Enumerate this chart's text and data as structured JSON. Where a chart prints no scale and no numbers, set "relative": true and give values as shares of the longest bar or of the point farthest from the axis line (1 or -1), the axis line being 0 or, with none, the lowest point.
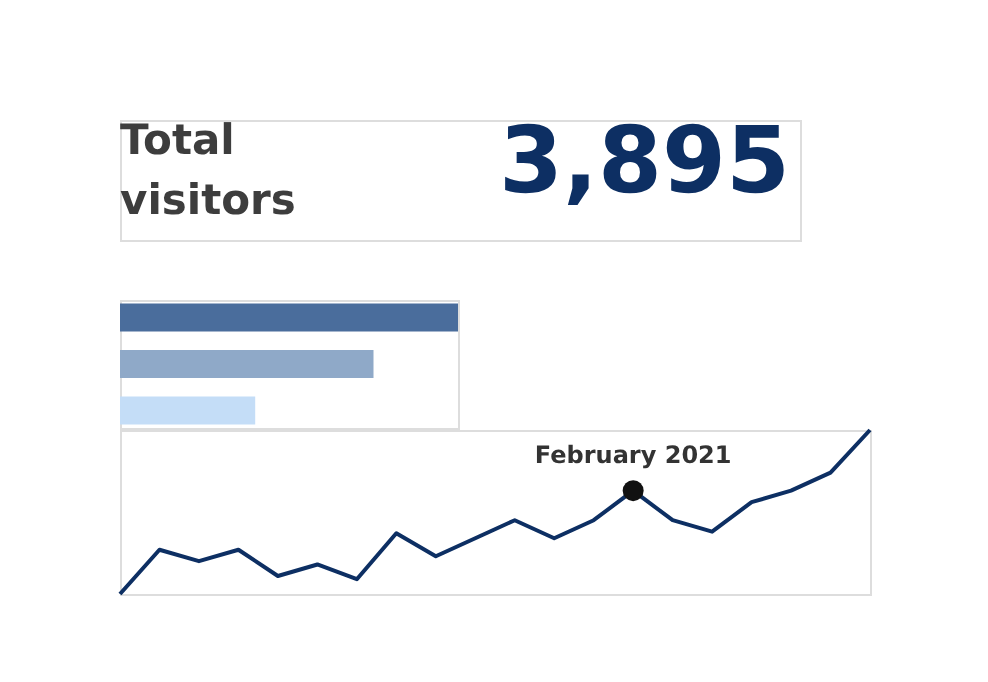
{
  "chart_data": [
    {
      "type": "other",
      "title": "Total visitors",
      "annotations": [
        "3,895"
      ]
    },
    {
      "type": "bar",
      "orientation": "horizontal",
      "relative": true,
      "categories": [
        null,
        null,
        null
      ],
      "values": [
        1,
        0.75,
        0.4
      ],
      "colors": [
        "#4a6d9c",
        "#8fa9c8",
        "#c4ddf7"
      ]
    },
    {
      "type": "line",
      "relative": true,
      "categories": [
        null,
        null,
        null,
        null,
        null,
        null,
        null,
        null,
        null,
        null,
        null,
        null,
        null,
        null,
        null,
        null,
        null,
        null,
        null,
        null
      ],
      "series": [
        {
          "type": "line",
          "color": "#0d2f63",
          "values": [
            0,
            0.27,
            0.2,
            0.27,
            0.11,
            0.18,
            0.09,
            0.37,
            0.23,
            0.34,
            0.45,
            0.34,
            0.45,
            0.63,
            0.45,
            0.38,
            0.56,
            0.63,
            0.74,
            1
          ]
        }
      ],
      "annotations": [
        {
          "text": "February 2021",
          "y": 0.63
        }
      ]
    }
  ]
}
